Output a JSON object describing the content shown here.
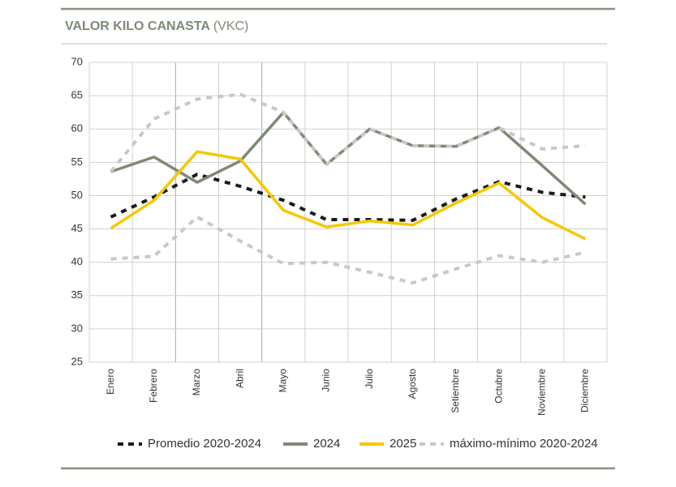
{
  "chart_data": {
    "type": "line",
    "title": "VALOR KILO CANASTA",
    "subtitle": "(VKC)",
    "categories": [
      "Enero",
      "Febrero",
      "Marzo",
      "Abril",
      "Mayo",
      "Junio",
      "Julio",
      "Agosto",
      "Setiembre",
      "Octubre",
      "Noviembre",
      "Diciembre"
    ],
    "series": [
      {
        "name": "Promedio 2020-2024",
        "color": "#1a1a1a",
        "dashed": true,
        "values": [
          46.8,
          49.8,
          53.2,
          51.4,
          49.3,
          46.4,
          46.4,
          46.3,
          49.5,
          52.1,
          50.5,
          49.8
        ]
      },
      {
        "name": "2024",
        "color": "#7e8a74",
        "dashed": false,
        "values": [
          53.6,
          55.8,
          52.0,
          55.2,
          62.5,
          54.7,
          60.0,
          57.5,
          57.4,
          60.2,
          54.5,
          48.7
        ]
      },
      {
        "name": "2025",
        "color": "#f5c800",
        "dashed": false,
        "values": [
          45.1,
          49.3,
          56.6,
          55.5,
          47.8,
          45.3,
          46.2,
          45.6,
          48.9,
          51.9,
          46.7,
          43.5
        ]
      },
      {
        "name": "máximo-mínimo 2020-2024",
        "color": "#c8c8c8",
        "dashed": true,
        "values": [
          53.6,
          61.5,
          64.5,
          65.2,
          62.5,
          54.7,
          60.0,
          57.5,
          57.4,
          60.2,
          57.0,
          57.5
        ],
        "min_values": [
          40.5,
          40.9,
          46.8,
          43.2,
          39.8,
          40.0,
          38.5,
          36.9,
          39.0,
          41.0,
          40.0,
          41.5
        ]
      }
    ],
    "ylim": [
      25,
      70
    ],
    "yticks": [
      25,
      30,
      35,
      40,
      45,
      50,
      55,
      60,
      65,
      70
    ],
    "grid": true,
    "legend": "bottom"
  }
}
